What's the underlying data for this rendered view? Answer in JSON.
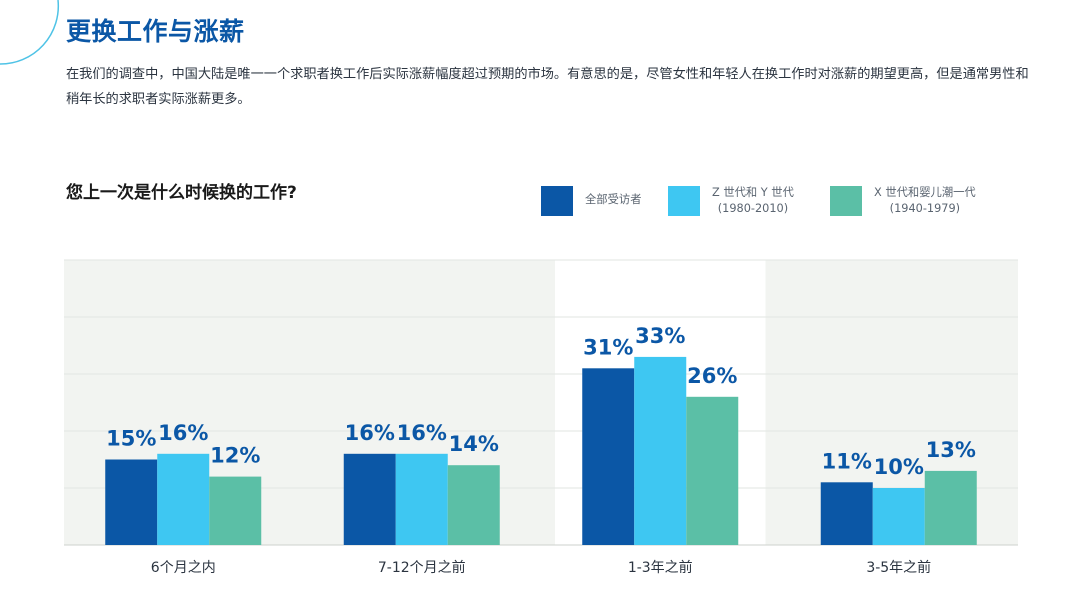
{
  "page": {
    "title": "更换工作与涨薪",
    "intro": "在我们的调查中，中国大陆是唯一一个求职者换工作后实际涨薪幅度超过预期的市场。有意思的是，尽管女性和年轻人在换工作时对涨薪的期望更高，但是通常男性和稍年长的求职者实际涨薪更多。"
  },
  "legend": [
    {
      "line1": "全部受访者",
      "line2": ""
    },
    {
      "line1": "Z 世代和 Y 世代",
      "line2": "(1980-2010)"
    },
    {
      "line1": "X 世代和婴儿潮一代",
      "line2": "(1940-1979)"
    }
  ],
  "colors": {
    "all": "#0b57a6",
    "gen_zy": "#3ec7f2",
    "gen_x": "#5bbfa6",
    "plot_bg": "#f2f4f1",
    "highlight_bg": "#ffffff",
    "label": "#0b57a6",
    "grid": "#ffffff"
  },
  "chart_data": {
    "type": "bar",
    "title": "您上一次是什么时候换的工作?",
    "xlabel": "",
    "ylabel": "",
    "categories": [
      "6个月之内",
      "7-12个月之前",
      "1-3年之前",
      "3-5年之前"
    ],
    "series": [
      {
        "name": "全部受访者",
        "values": [
          15,
          16,
          31,
          11
        ]
      },
      {
        "name": "Z 世代和 Y 世代 (1980-2010)",
        "values": [
          16,
          16,
          33,
          10
        ]
      },
      {
        "name": "X 世代和婴儿潮一代 (1940-1979)",
        "values": [
          12,
          14,
          26,
          13
        ]
      }
    ],
    "value_suffix": "%",
    "highlight_category": "1-3年之前",
    "ylim": [
      0,
      50
    ],
    "grid": true,
    "legend_position": "top-right"
  }
}
